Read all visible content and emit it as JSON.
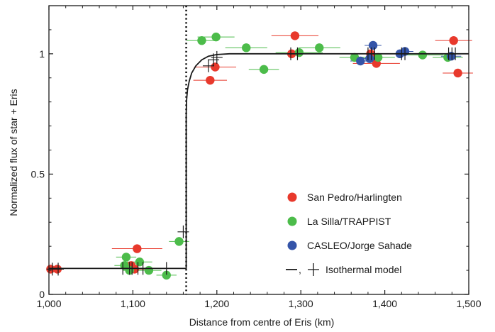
{
  "chart_data": {
    "type": "scatter",
    "xlabel": "Distance from centre of Eris (km)",
    "ylabel": "Normalized flux of star + Eris",
    "xlim": [
      1000,
      1500
    ],
    "ylim": [
      0,
      1.2
    ],
    "x_ticks": [
      1000,
      1100,
      1200,
      1300,
      1400,
      1500
    ],
    "x_tick_labels": [
      "1,000",
      "1,100",
      "1,200",
      "1,300",
      "1,400",
      "1,500"
    ],
    "y_ticks": [
      0,
      0.5,
      1
    ],
    "y_tick_labels": [
      "0",
      "0.5",
      "1"
    ],
    "grid": false,
    "legend_position": "lower-right",
    "colors": {
      "San Pedro/Harlingten": "#e8392c",
      "La Silla/TRAPPIST": "#4cbc4a",
      "CASLEO/Jorge Sahade": "#3454a8",
      "Isothermal model": "#1a1a1a"
    },
    "series": [
      {
        "name": "San Pedro/Harlingten",
        "points": [
          {
            "x": 1002,
            "y": 0.105,
            "xerr": 5
          },
          {
            "x": 1010,
            "y": 0.105,
            "xerr": 6
          },
          {
            "x": 1098,
            "y": 0.12,
            "xerr": 10
          },
          {
            "x": 1102,
            "y": 0.105,
            "xerr": 12
          },
          {
            "x": 1105,
            "y": 0.19,
            "xerr": 30
          },
          {
            "x": 1192,
            "y": 0.89,
            "xerr": 20
          },
          {
            "x": 1198,
            "y": 0.945,
            "xerr": 25
          },
          {
            "x": 1289,
            "y": 1.0,
            "xerr": 28
          },
          {
            "x": 1293,
            "y": 1.075,
            "xerr": 28
          },
          {
            "x": 1383,
            "y": 1.0,
            "xerr": 25
          },
          {
            "x": 1390,
            "y": 0.96,
            "xerr": 28
          },
          {
            "x": 1482,
            "y": 1.055,
            "xerr": 22
          },
          {
            "x": 1487,
            "y": 0.92,
            "xerr": 18
          }
        ]
      },
      {
        "name": "La Silla/TRAPPIST",
        "points": [
          {
            "x": 1090,
            "y": 0.12,
            "xerr": 12
          },
          {
            "x": 1092,
            "y": 0.155,
            "xerr": 12
          },
          {
            "x": 1096,
            "y": 0.1,
            "xerr": 8
          },
          {
            "x": 1108,
            "y": 0.135,
            "xerr": 15
          },
          {
            "x": 1119,
            "y": 0.1,
            "xerr": 15
          },
          {
            "x": 1140,
            "y": 0.08,
            "xerr": 12
          },
          {
            "x": 1155,
            "y": 0.22,
            "xerr": 12
          },
          {
            "x": 1182,
            "y": 1.055,
            "xerr": 18
          },
          {
            "x": 1199,
            "y": 1.07,
            "xerr": 22
          },
          {
            "x": 1235,
            "y": 1.025,
            "xerr": 25
          },
          {
            "x": 1256,
            "y": 0.935,
            "xerr": 18
          },
          {
            "x": 1298,
            "y": 1.005,
            "xerr": 28
          },
          {
            "x": 1322,
            "y": 1.025,
            "xerr": 25
          },
          {
            "x": 1364,
            "y": 0.985,
            "xerr": 18
          },
          {
            "x": 1392,
            "y": 0.985,
            "xerr": 20
          },
          {
            "x": 1445,
            "y": 0.995,
            "xerr": 25
          },
          {
            "x": 1475,
            "y": 0.985,
            "xerr": 18
          }
        ]
      },
      {
        "name": "CASLEO/Jorge Sahade",
        "points": [
          {
            "x": 1371,
            "y": 0.97,
            "xerr": 12
          },
          {
            "x": 1382,
            "y": 0.98,
            "xerr": 12
          },
          {
            "x": 1386,
            "y": 1.035,
            "xerr": 10
          },
          {
            "x": 1418,
            "y": 1.0,
            "xerr": 12
          },
          {
            "x": 1424,
            "y": 1.01,
            "xerr": 10
          },
          {
            "x": 1479,
            "y": 0.99,
            "xerr": 12
          }
        ]
      }
    ],
    "model": {
      "name": "Isothermal model",
      "curve": [
        {
          "x": 1000,
          "y": 0.108
        },
        {
          "x": 1163.5,
          "y": 0.108
        },
        {
          "x": 1163.5,
          "y": 0.75
        },
        {
          "x": 1164,
          "y": 0.81
        },
        {
          "x": 1165,
          "y": 0.85
        },
        {
          "x": 1167,
          "y": 0.885
        },
        {
          "x": 1170,
          "y": 0.92
        },
        {
          "x": 1175,
          "y": 0.95
        },
        {
          "x": 1182,
          "y": 0.975
        },
        {
          "x": 1190,
          "y": 0.99
        },
        {
          "x": 1200,
          "y": 0.997
        },
        {
          "x": 1215,
          "y": 1.0
        },
        {
          "x": 1500,
          "y": 1.0
        }
      ],
      "cross_points": [
        {
          "x": 1004,
          "y": 0.105
        },
        {
          "x": 1011,
          "y": 0.105
        },
        {
          "x": 1088,
          "y": 0.108
        },
        {
          "x": 1096,
          "y": 0.108
        },
        {
          "x": 1099,
          "y": 0.108
        },
        {
          "x": 1106,
          "y": 0.108
        },
        {
          "x": 1112,
          "y": 0.108
        },
        {
          "x": 1140,
          "y": 0.108
        },
        {
          "x": 1160,
          "y": 0.26
        },
        {
          "x": 1190,
          "y": 0.95
        },
        {
          "x": 1196,
          "y": 0.975
        },
        {
          "x": 1200,
          "y": 0.985
        },
        {
          "x": 1288,
          "y": 1.0
        },
        {
          "x": 1296,
          "y": 1.0
        },
        {
          "x": 1380,
          "y": 1.0
        },
        {
          "x": 1384,
          "y": 1.0
        },
        {
          "x": 1388,
          "y": 1.0
        },
        {
          "x": 1420,
          "y": 1.0
        },
        {
          "x": 1424,
          "y": 1.0
        },
        {
          "x": 1476,
          "y": 1.0
        },
        {
          "x": 1480,
          "y": 1.0
        },
        {
          "x": 1484,
          "y": 1.0
        }
      ],
      "label": "—, + Isothermal model"
    },
    "reference_line": {
      "x": 1163.5,
      "style": "dotted"
    }
  }
}
